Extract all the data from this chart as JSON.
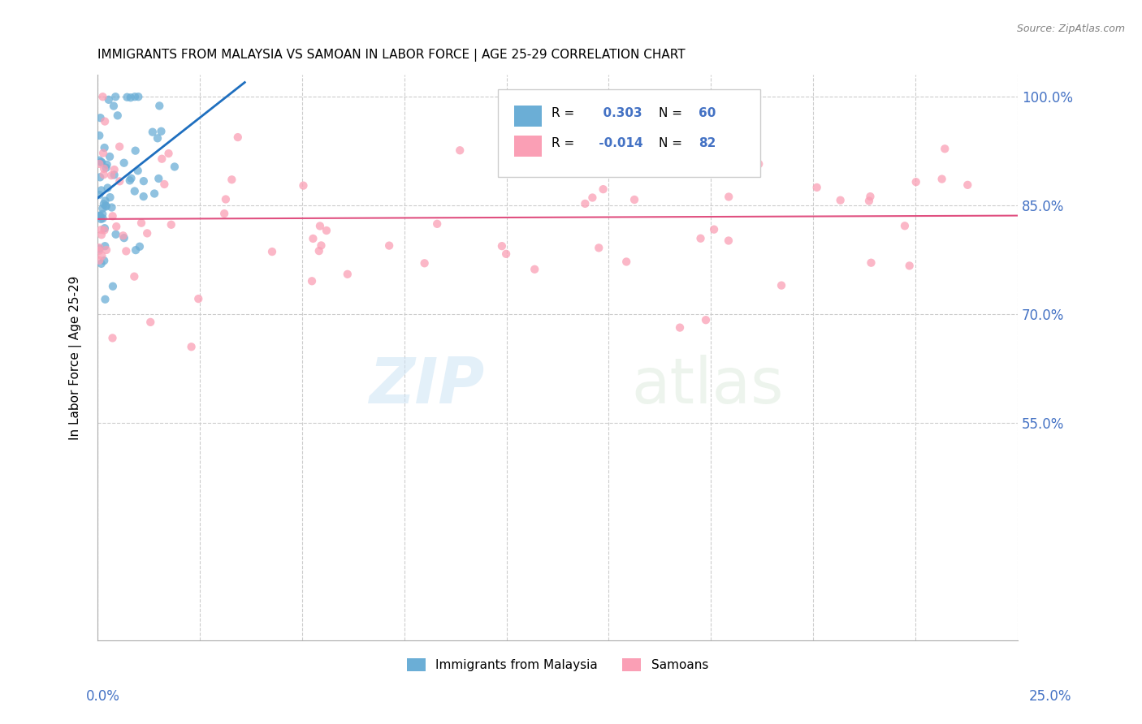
{
  "title": "IMMIGRANTS FROM MALAYSIA VS SAMOAN IN LABOR FORCE | AGE 25-29 CORRELATION CHART",
  "source": "Source: ZipAtlas.com",
  "ylabel": "In Labor Force | Age 25-29",
  "ytick_labels": [
    "100.0%",
    "85.0%",
    "70.0%",
    "55.0%"
  ],
  "ytick_values": [
    1.0,
    0.85,
    0.7,
    0.55
  ],
  "xmin": 0.0,
  "xmax": 0.25,
  "ymin": 0.25,
  "ymax": 1.03,
  "r_malaysia": 0.303,
  "n_malaysia": 60,
  "r_samoan": -0.014,
  "n_samoan": 82,
  "color_malaysia": "#6baed6",
  "color_samoan": "#fa9fb5",
  "color_malaysia_line": "#1f6fbf",
  "color_samoan_line": "#e05080",
  "watermark_zip": "ZIP",
  "watermark_atlas": "atlas",
  "legend_label_malaysia": "Immigrants from Malaysia",
  "legend_label_samoan": "Samoans"
}
